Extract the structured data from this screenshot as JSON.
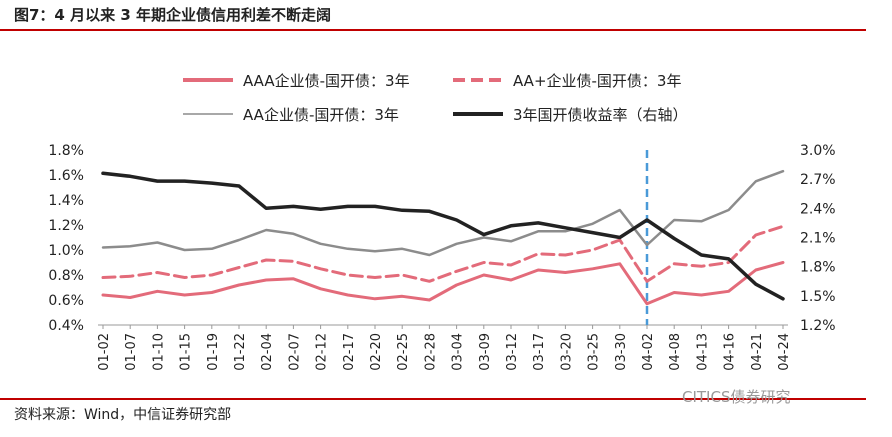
{
  "title": "图7：4 月以来 3 年期企业债信用利差不断走阔",
  "source": "资料来源：Wind，中信证券研究部",
  "watermark": "CITICS债券研究",
  "chart_data": {
    "type": "line",
    "x": [
      "01-02",
      "01-07",
      "01-10",
      "01-15",
      "01-19",
      "01-22",
      "02-04",
      "02-07",
      "02-12",
      "02-17",
      "02-20",
      "02-25",
      "02-28",
      "03-04",
      "03-09",
      "03-12",
      "03-17",
      "03-20",
      "03-25",
      "03-30",
      "04-02",
      "04-08",
      "04-13",
      "04-16",
      "04-21",
      "04-24"
    ],
    "yleft": {
      "ticks": [
        "0.4%",
        "0.6%",
        "0.8%",
        "1.0%",
        "1.2%",
        "1.4%",
        "1.6%",
        "1.8%"
      ],
      "range": [
        0.4,
        1.8
      ]
    },
    "yright": {
      "ticks": [
        "1.2%",
        "1.5%",
        "1.8%",
        "2.1%",
        "2.4%",
        "2.7%",
        "3.0%"
      ],
      "range": [
        1.2,
        3.0
      ]
    },
    "marker_x": "04-02",
    "legend": {
      "placement": "top"
    },
    "series": [
      {
        "name": "AAA企业债-国开债：3年",
        "axis": "left",
        "color": "#e36b7a",
        "style": "solid",
        "values": [
          0.64,
          0.62,
          0.67,
          0.64,
          0.66,
          0.72,
          0.76,
          0.77,
          0.69,
          0.64,
          0.61,
          0.63,
          0.6,
          0.72,
          0.8,
          0.76,
          0.84,
          0.82,
          0.85,
          0.89,
          0.57,
          0.66,
          0.64,
          0.67,
          0.84,
          0.9
        ]
      },
      {
        "name": "AA+企业债-国开债：3年",
        "axis": "left",
        "color": "#e36b7a",
        "style": "dashed",
        "values": [
          0.78,
          0.79,
          0.82,
          0.78,
          0.8,
          0.86,
          0.92,
          0.91,
          0.85,
          0.8,
          0.78,
          0.8,
          0.75,
          0.83,
          0.9,
          0.88,
          0.97,
          0.96,
          1.0,
          1.08,
          0.75,
          0.89,
          0.87,
          0.9,
          1.12,
          1.19
        ]
      },
      {
        "name": "AA企业债-国开债：3年",
        "axis": "left",
        "color": "#8c8c8c",
        "style": "solid",
        "values": [
          1.02,
          1.03,
          1.06,
          1.0,
          1.01,
          1.08,
          1.16,
          1.13,
          1.05,
          1.01,
          0.99,
          1.01,
          0.96,
          1.05,
          1.1,
          1.07,
          1.15,
          1.15,
          1.21,
          1.32,
          1.04,
          1.24,
          1.23,
          1.32,
          1.55,
          1.63
        ]
      },
      {
        "name": "3年国开债收益率（右轴）",
        "axis": "right",
        "color": "#222222",
        "style": "solid",
        "values": [
          2.76,
          2.73,
          2.68,
          2.68,
          2.66,
          2.63,
          2.4,
          2.42,
          2.39,
          2.42,
          2.42,
          2.38,
          2.37,
          2.28,
          2.13,
          2.22,
          2.25,
          2.2,
          2.15,
          2.1,
          2.28,
          2.09,
          1.92,
          1.88,
          1.62,
          1.47
        ]
      }
    ]
  }
}
